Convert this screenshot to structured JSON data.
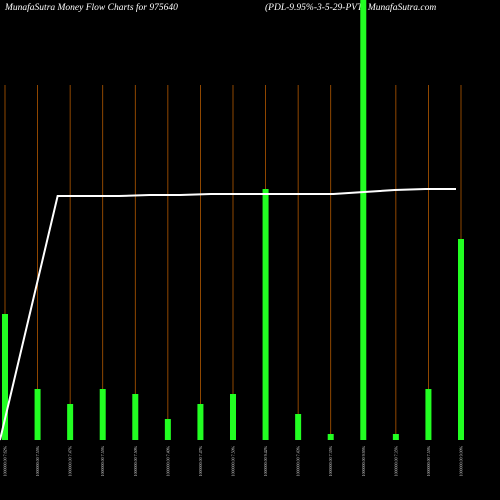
{
  "chart_data": {
    "type": "bar",
    "title": "MunafaSutra  Money Flow  Charts for 975640",
    "subtitle": "(PDL-9.95%-3-5-29-PVT) MunafaSutra.com",
    "categories": [
      "1000000.00 7.62%",
      "1000000.00 7.55%",
      "1000000.00 7.47%",
      "1000000.00 7.55%",
      "1000000.00 7.50%",
      "1000000.00 7.40%",
      "1000000.00 7.47%",
      "1000000.00 7.50%",
      "1000000.00 9.42%",
      "1000000.00 7.43%",
      "1000000.00 7.35%",
      "1000000.00 9.95%",
      "1000000.00 7.35%",
      "1000000.00 7.55%",
      "1000000.00 9.00%"
    ],
    "values": [
      126,
      51,
      36,
      51,
      46,
      21,
      36,
      46,
      251,
      26,
      6,
      440,
      6,
      51,
      201
    ],
    "color": "#22ff22",
    "line": {
      "color": "#ffffff",
      "values": [
        0,
        244,
        244,
        244,
        245,
        245,
        246,
        246,
        246,
        246,
        246,
        248,
        250,
        251,
        251
      ]
    },
    "ylim": [
      0,
      440
    ],
    "gridline_color": "#b35900"
  }
}
